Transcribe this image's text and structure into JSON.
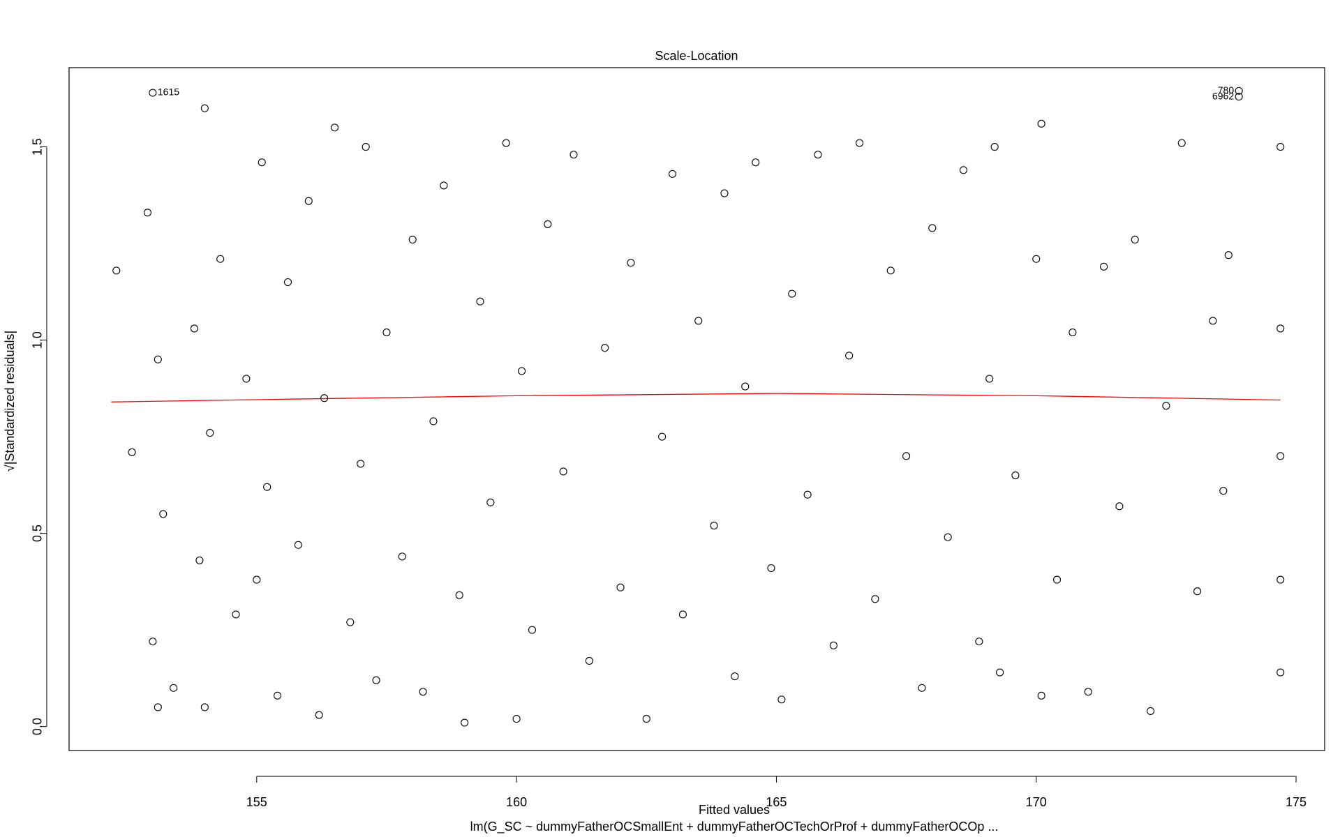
{
  "chart_data": {
    "type": "scatter",
    "title": "Scale-Location",
    "xlabel": "Fitted values",
    "ylabel": "√|Standardized residuals|",
    "subtitle": "lm(G_SC ~ dummyFatherOCSmallEnt + dummyFatherOCTechOrProf + dummyFatherOCOp ...",
    "xlim": [
      151.39,
      175.55
    ],
    "ylim": [
      -0.062,
      1.705
    ],
    "xticks": [
      155,
      160,
      165,
      170,
      175
    ],
    "yticks": [
      {
        "value": 0,
        "label": "0.0"
      },
      {
        "value": 0.5,
        "label": "0.5"
      },
      {
        "value": 1,
        "label": "1.0"
      },
      {
        "value": 1.5,
        "label": "1.5"
      }
    ],
    "grid": false,
    "series": [
      {
        "type": "scatter",
        "color": "#000000",
        "x": [
          152.3,
          152.6,
          152.9,
          153.0,
          153.0,
          153.1,
          153.1,
          153.2,
          153.4,
          153.8,
          153.9,
          154.0,
          154.0,
          154.1,
          154.3,
          154.6,
          154.8,
          155.0,
          155.1,
          155.2,
          155.4,
          155.6,
          155.8,
          156.0,
          156.2,
          156.3,
          156.5,
          156.8,
          157.0,
          157.1,
          157.3,
          157.5,
          157.8,
          158.0,
          158.2,
          158.4,
          158.6,
          158.9,
          159.0,
          159.3,
          159.5,
          159.8,
          160.0,
          160.1,
          160.3,
          160.6,
          160.9,
          161.1,
          161.4,
          161.7,
          162.0,
          162.2,
          162.5,
          162.8,
          163.0,
          163.2,
          163.5,
          163.8,
          164.0,
          164.2,
          164.4,
          164.6,
          164.9,
          165.1,
          165.3,
          165.6,
          165.8,
          166.1,
          166.4,
          166.6,
          166.9,
          167.2,
          167.5,
          167.8,
          168.0,
          168.3,
          168.6,
          168.9,
          169.1,
          169.2,
          169.3,
          169.6,
          170.0,
          170.1,
          170.1,
          170.4,
          170.7,
          171.0,
          171.3,
          171.6,
          171.9,
          172.2,
          172.5,
          172.8,
          173.1,
          173.4,
          173.6,
          173.7,
          173.9,
          173.9,
          174.7,
          174.7,
          174.7,
          174.7,
          174.7
        ],
        "values": [
          1.18,
          0.71,
          1.33,
          1.64,
          0.22,
          0.05,
          0.95,
          0.55,
          0.1,
          1.03,
          0.43,
          1.6,
          0.05,
          0.76,
          1.21,
          0.29,
          0.9,
          0.38,
          1.46,
          0.62,
          0.08,
          1.15,
          0.47,
          1.36,
          0.03,
          0.85,
          1.55,
          0.27,
          0.68,
          1.5,
          0.12,
          1.02,
          0.44,
          1.26,
          0.09,
          0.79,
          1.4,
          0.34,
          0.01,
          1.1,
          0.58,
          1.51,
          0.02,
          0.92,
          0.25,
          1.3,
          0.66,
          1.48,
          0.17,
          0.98,
          0.36,
          1.2,
          0.02,
          0.75,
          1.43,
          0.29,
          1.05,
          0.52,
          1.38,
          0.13,
          0.88,
          1.46,
          0.41,
          0.07,
          1.12,
          0.6,
          1.48,
          0.21,
          0.96,
          1.51,
          0.33,
          1.18,
          0.7,
          0.1,
          1.29,
          0.49,
          1.44,
          0.22,
          0.9,
          1.5,
          0.14,
          0.65,
          1.21,
          0.08,
          1.56,
          0.38,
          1.02,
          0.09,
          1.19,
          0.57,
          1.26,
          0.04,
          0.83,
          1.51,
          0.35,
          1.05,
          0.61,
          1.22,
          1.645,
          1.63,
          1.5,
          1.03,
          0.7,
          0.38,
          0.14
        ]
      },
      {
        "type": "line",
        "color": "#ff0000",
        "x": [
          152.2,
          156,
          160,
          165,
          170,
          174.7
        ],
        "values": [
          0.84,
          0.848,
          0.856,
          0.862,
          0.856,
          0.845
        ]
      }
    ],
    "annotations": [
      {
        "text": "1615",
        "x": 153.0,
        "y": 1.64,
        "side": "right"
      },
      {
        "text": "780",
        "x": 173.9,
        "y": 1.645,
        "side": "left"
      },
      {
        "text": "6962",
        "x": 173.9,
        "y": 1.63,
        "side": "left"
      }
    ]
  }
}
